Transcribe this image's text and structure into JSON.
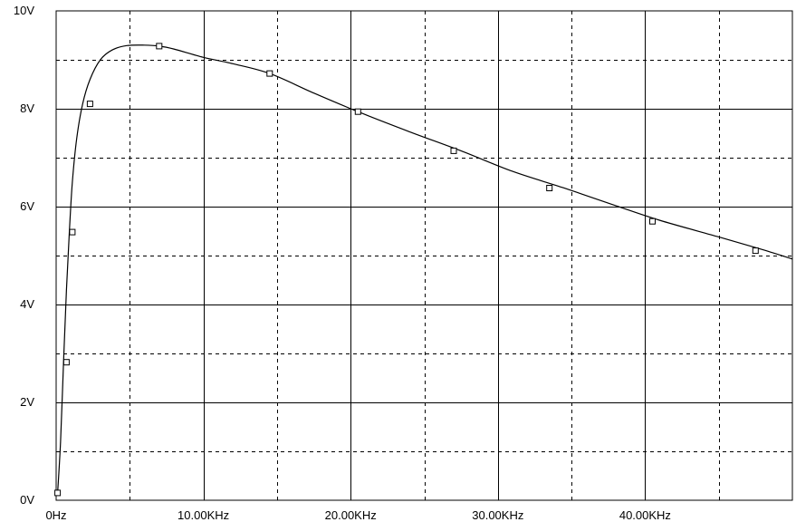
{
  "chart_data": {
    "type": "line",
    "title": "",
    "xlabel": "",
    "ylabel": "",
    "xlim": [
      0,
      50000
    ],
    "ylim": [
      0,
      10
    ],
    "grid": true,
    "x_ticks": [
      {
        "value": 0,
        "label": "0Hz"
      },
      {
        "value": 10000,
        "label": "10.00KHz"
      },
      {
        "value": 20000,
        "label": "20.00KHz"
      },
      {
        "value": 30000,
        "label": "30.00KHz"
      },
      {
        "value": 40000,
        "label": "40.00KHz"
      }
    ],
    "y_ticks": [
      {
        "value": 0,
        "label": "0V"
      },
      {
        "value": 2,
        "label": "2V"
      },
      {
        "value": 4,
        "label": "4V"
      },
      {
        "value": 6,
        "label": "6V"
      },
      {
        "value": 8,
        "label": "8V"
      },
      {
        "value": 10,
        "label": "10V"
      }
    ],
    "series": [
      {
        "line_color": "#000000",
        "x": [
          100,
          300,
          500,
          700,
          900,
          1100,
          1400,
          1800,
          2300,
          3000,
          3800,
          4800,
          6000,
          7000,
          8000,
          10000,
          12000,
          14500,
          17500,
          20500,
          24000,
          27500,
          31000,
          34500,
          38000,
          41000,
          45000,
          48000,
          50000
        ],
        "y": [
          0.15,
          1.2,
          2.8,
          4.3,
          5.5,
          6.5,
          7.4,
          8.1,
          8.6,
          9.0,
          9.2,
          9.29,
          9.3,
          9.28,
          9.22,
          9.05,
          8.92,
          8.72,
          8.32,
          7.94,
          7.53,
          7.14,
          6.72,
          6.38,
          6.02,
          5.72,
          5.38,
          5.12,
          4.93
        ]
      }
    ],
    "markers": {
      "shape": "square",
      "x": [
        100,
        700,
        1100,
        2300,
        7000,
        14500,
        20500,
        27000,
        33500,
        40500,
        47500
      ],
      "y": [
        0.15,
        2.82,
        5.48,
        8.1,
        9.28,
        8.72,
        7.94,
        7.14,
        6.38,
        5.7,
        5.1
      ]
    }
  }
}
